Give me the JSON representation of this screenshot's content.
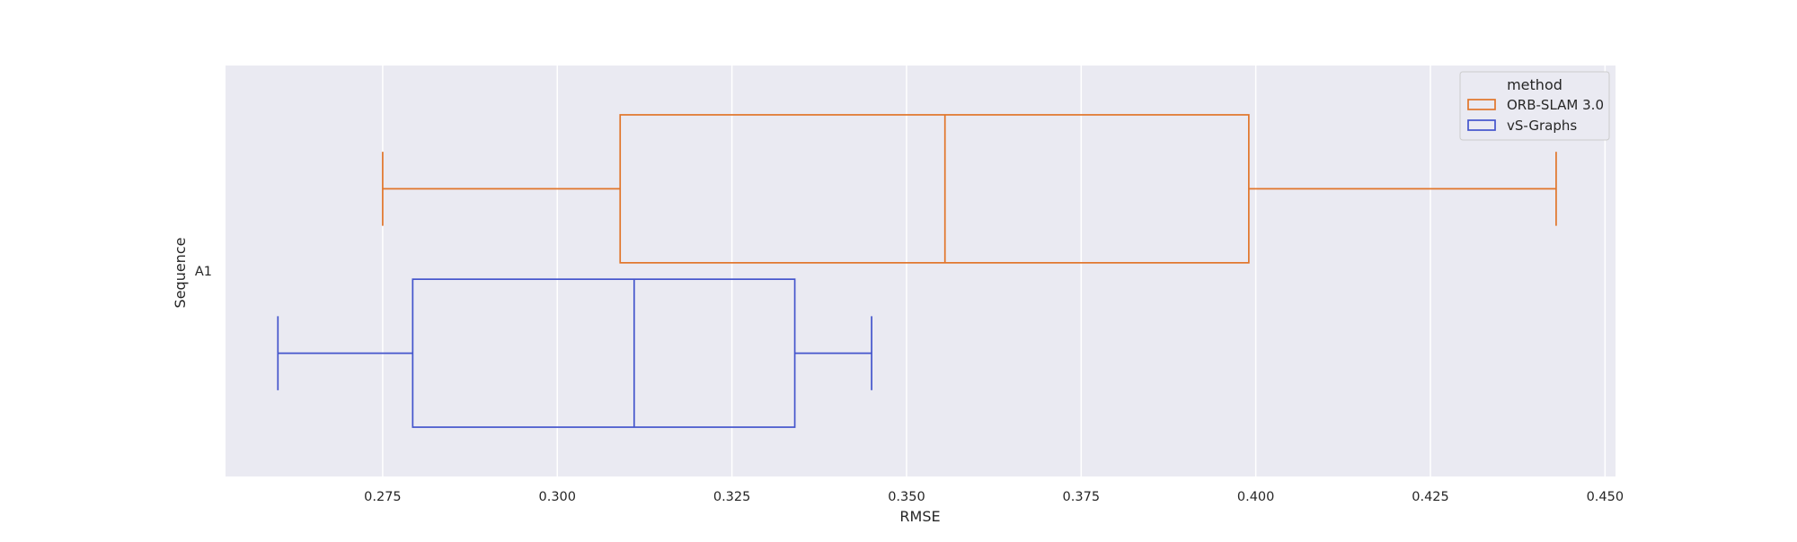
{
  "chart_data": {
    "type": "box",
    "orientation": "horizontal",
    "xlabel": "RMSE",
    "ylabel": "Sequence",
    "xlim": [
      0.2525,
      0.4515
    ],
    "xticks": [
      0.275,
      0.3,
      0.325,
      0.35,
      0.375,
      0.4,
      0.425,
      0.45
    ],
    "xtick_labels": [
      "0.275",
      "0.300",
      "0.325",
      "0.350",
      "0.375",
      "0.400",
      "0.425",
      "0.450"
    ],
    "categories": [
      "A1"
    ],
    "grid": true,
    "legend": {
      "title": "method",
      "position": "top-right"
    },
    "series": [
      {
        "name": "ORB-SLAM 3.0",
        "color": "#E1752A",
        "boxes": [
          {
            "category": "A1",
            "whisker_low": 0.275,
            "q1": 0.309,
            "median": 0.3555,
            "q3": 0.399,
            "whisker_high": 0.443
          }
        ]
      },
      {
        "name": "vS-Graphs",
        "color": "#4455CC",
        "boxes": [
          {
            "category": "A1",
            "whisker_low": 0.26,
            "q1": 0.2793,
            "median": 0.311,
            "q3": 0.334,
            "whisker_high": 0.345
          }
        ]
      }
    ]
  }
}
